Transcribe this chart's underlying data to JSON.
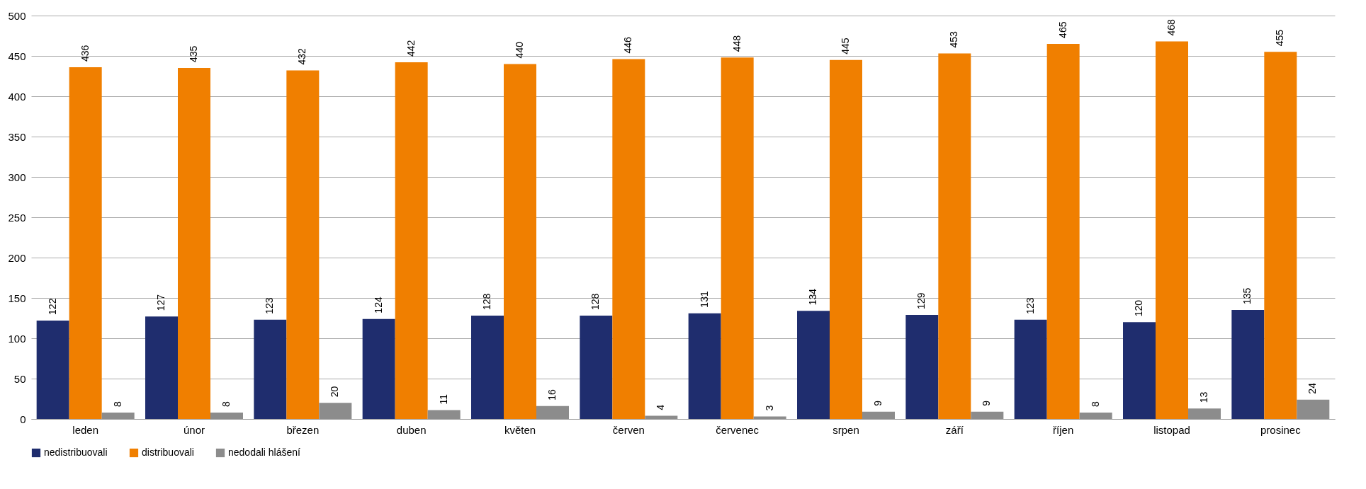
{
  "chart_data": {
    "type": "bar",
    "categories": [
      "leden",
      "únor",
      "březen",
      "duben",
      "květen",
      "červen",
      "červenec",
      "srpen",
      "září",
      "říjen",
      "listopad",
      "prosinec"
    ],
    "series": [
      {
        "name": "nedistribuovali",
        "color": "#1f2d6e",
        "values": [
          122,
          127,
          123,
          124,
          128,
          128,
          131,
          134,
          129,
          123,
          120,
          135
        ]
      },
      {
        "name": "distribuovali",
        "color": "#f07f00",
        "values": [
          436,
          435,
          432,
          442,
          440,
          446,
          448,
          445,
          453,
          465,
          468,
          455
        ]
      },
      {
        "name": "nedodali hlášení",
        "color": "#8c8c8c",
        "values": [
          8,
          8,
          20,
          11,
          16,
          4,
          3,
          9,
          9,
          8,
          13,
          24
        ]
      }
    ],
    "ylim": [
      0,
      500
    ],
    "yticks": [
      0,
      50,
      100,
      150,
      200,
      250,
      300,
      350,
      400,
      450,
      500
    ],
    "grid": "y",
    "legend": "bottom",
    "data_labels": true
  }
}
